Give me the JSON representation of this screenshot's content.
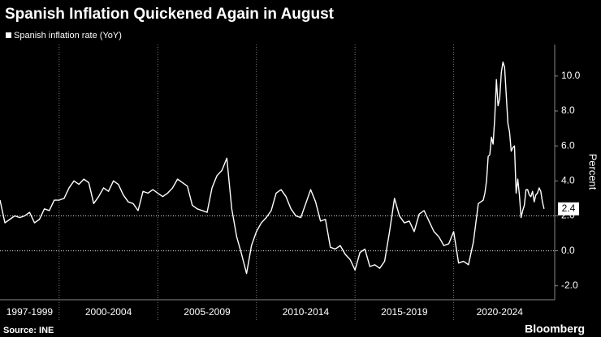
{
  "chart_data": {
    "type": "line",
    "title": "Spanish Inflation Quickened Again in August",
    "y_axis_label": "Percent",
    "source": "Source: INE",
    "brand": "Bloomberg",
    "series": [
      {
        "name": "Spanish inflation rate (YoY)",
        "color": "#ffffff",
        "x": [
          1997.0,
          1997.25,
          1997.5,
          1997.75,
          1998.0,
          1998.25,
          1998.5,
          1998.75,
          1999.0,
          1999.25,
          1999.5,
          1999.75,
          2000.0,
          2000.25,
          2000.5,
          2000.75,
          2001.0,
          2001.25,
          2001.5,
          2001.75,
          2002.0,
          2002.25,
          2002.5,
          2002.75,
          2003.0,
          2003.25,
          2003.5,
          2003.75,
          2004.0,
          2004.25,
          2004.5,
          2004.75,
          2005.0,
          2005.25,
          2005.5,
          2005.75,
          2006.0,
          2006.25,
          2006.5,
          2006.75,
          2007.0,
          2007.25,
          2007.5,
          2007.75,
          2008.0,
          2008.25,
          2008.5,
          2008.75,
          2009.0,
          2009.25,
          2009.5,
          2009.75,
          2010.0,
          2010.25,
          2010.5,
          2010.75,
          2011.0,
          2011.25,
          2011.5,
          2011.75,
          2012.0,
          2012.25,
          2012.5,
          2012.75,
          2013.0,
          2013.25,
          2013.5,
          2013.75,
          2014.0,
          2014.25,
          2014.5,
          2014.75,
          2015.0,
          2015.25,
          2015.5,
          2015.75,
          2016.0,
          2016.25,
          2016.5,
          2016.75,
          2017.0,
          2017.25,
          2017.5,
          2017.75,
          2018.0,
          2018.25,
          2018.5,
          2018.75,
          2019.0,
          2019.25,
          2019.5,
          2019.75,
          2020.0,
          2020.25,
          2020.5,
          2020.75,
          2021.0,
          2021.25,
          2021.5,
          2021.583,
          2021.667,
          2021.75,
          2021.833,
          2021.917,
          2022.0,
          2022.083,
          2022.167,
          2022.25,
          2022.333,
          2022.417,
          2022.5,
          2022.583,
          2022.667,
          2022.75,
          2022.833,
          2022.917,
          2023.0,
          2023.083,
          2023.167,
          2023.25,
          2023.333,
          2023.417,
          2023.5,
          2023.583,
          2023.667,
          2023.75,
          2023.833,
          2023.917,
          2024.0,
          2024.083,
          2024.167,
          2024.25,
          2024.333,
          2024.417,
          2024.5,
          2024.583
        ],
        "values": [
          2.9,
          1.6,
          1.8,
          2.0,
          1.9,
          2.0,
          2.2,
          1.6,
          1.8,
          2.4,
          2.3,
          2.9,
          2.9,
          3.0,
          3.6,
          4.0,
          3.8,
          4.1,
          3.9,
          2.7,
          3.1,
          3.6,
          3.4,
          4.0,
          3.8,
          3.2,
          2.8,
          2.7,
          2.3,
          3.4,
          3.3,
          3.5,
          3.3,
          3.1,
          3.3,
          3.6,
          4.1,
          3.9,
          3.7,
          2.6,
          2.4,
          2.3,
          2.2,
          3.6,
          4.3,
          4.6,
          5.3,
          2.4,
          0.8,
          -0.2,
          -1.3,
          0.3,
          1.1,
          1.6,
          1.9,
          2.3,
          3.3,
          3.5,
          3.1,
          2.4,
          2.0,
          1.9,
          2.7,
          3.5,
          2.8,
          1.7,
          1.8,
          0.2,
          0.1,
          0.3,
          -0.2,
          -0.5,
          -1.1,
          -0.1,
          0.1,
          -0.9,
          -0.8,
          -1.0,
          -0.6,
          1.1,
          3.0,
          2.0,
          1.6,
          1.7,
          1.1,
          2.1,
          2.3,
          1.7,
          1.1,
          0.8,
          0.3,
          0.4,
          1.1,
          -0.7,
          -0.6,
          -0.8,
          0.5,
          2.7,
          2.9,
          3.3,
          4.0,
          5.4,
          5.5,
          6.5,
          6.1,
          7.6,
          9.8,
          8.3,
          8.7,
          10.2,
          10.8,
          10.5,
          8.9,
          7.3,
          6.8,
          5.7,
          5.9,
          6.0,
          3.3,
          4.1,
          3.2,
          1.9,
          2.3,
          2.6,
          3.5,
          3.5,
          3.2,
          3.1,
          3.4,
          2.8,
          3.2,
          3.3,
          3.6,
          3.4,
          2.8,
          2.4
        ]
      }
    ],
    "xlim": [
      1997.0,
      2024.67
    ],
    "xgrid": [
      2000,
      2005,
      2010,
      2015,
      2020
    ],
    "period_labels": [
      "1997-1999",
      "2000-2004",
      "2005-2009",
      "2010-2014",
      "2015-2019",
      "2020-2024"
    ],
    "ylim": [
      -2.8,
      11.8
    ],
    "yticks": [
      {
        "value": -2,
        "label": "-2.0"
      },
      {
        "value": 0,
        "label": "0.0"
      },
      {
        "value": 2,
        "label": "2.0"
      },
      {
        "value": 4,
        "label": "4.0"
      },
      {
        "value": 6,
        "label": "6.0"
      },
      {
        "value": 8,
        "label": "8.0"
      },
      {
        "value": 10,
        "label": "10.0"
      }
    ],
    "reference_lines": [
      0,
      2
    ]
  }
}
